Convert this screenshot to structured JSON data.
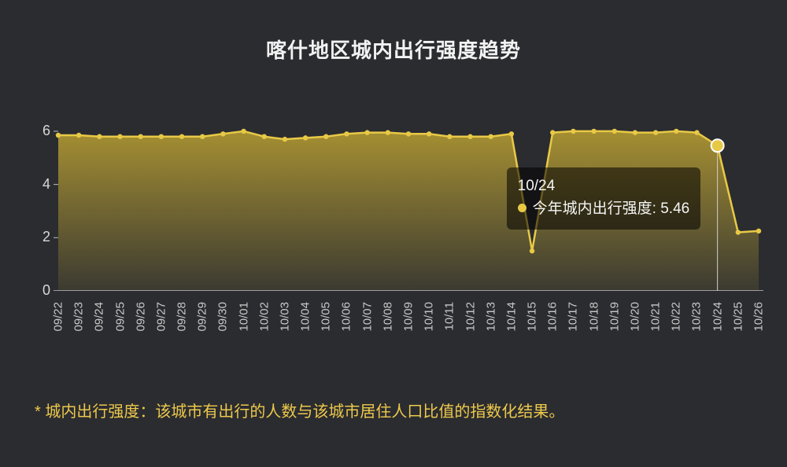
{
  "chart": {
    "type": "area",
    "title": "喀什地区城内出行强度趋势",
    "title_fontsize": 26,
    "title_color": "#f2f2f2",
    "background_color": "#2b2c30",
    "axis_color": "#c0c0c0",
    "label_color": "#c8c8c8",
    "label_fontsize": 15,
    "ytick_fontsize": 18,
    "series_color": "#e8c946",
    "marker_color": "#e8c946",
    "marker_radius": 3.2,
    "line_width": 2.5,
    "gradient_top": "#a58f32",
    "gradient_bottom": "#3b3a31",
    "ylim": [
      0,
      6.5
    ],
    "yticks": [
      0,
      2,
      4,
      6
    ],
    "x_labels": [
      "09/22",
      "09/23",
      "09/24",
      "09/25",
      "09/26",
      "09/27",
      "09/28",
      "09/29",
      "09/30",
      "10/01",
      "10/02",
      "10/03",
      "10/04",
      "10/05",
      "10/06",
      "10/07",
      "10/08",
      "10/09",
      "10/10",
      "10/11",
      "10/12",
      "10/13",
      "10/14",
      "10/15",
      "10/16",
      "10/17",
      "10/18",
      "10/19",
      "10/20",
      "10/21",
      "10/22",
      "10/23",
      "10/24",
      "10/25",
      "10/26"
    ],
    "values": [
      5.85,
      5.85,
      5.8,
      5.8,
      5.8,
      5.8,
      5.8,
      5.8,
      5.9,
      6.0,
      5.8,
      5.7,
      5.75,
      5.8,
      5.9,
      5.95,
      5.95,
      5.9,
      5.9,
      5.8,
      5.8,
      5.8,
      5.9,
      1.5,
      5.95,
      6.0,
      6.0,
      6.0,
      5.95,
      5.95,
      6.0,
      5.95,
      5.46,
      2.2,
      2.25
    ],
    "highlight_index": 32,
    "highlight_dot_radius": 8,
    "tooltip": {
      "date": "10/24",
      "series_name": "今年城内出行强度",
      "value": "5.46",
      "dot_color": "#e8c946",
      "bg_color": "rgba(0,0,0,0.55)",
      "text_color": "#f5f5f5"
    }
  },
  "footnote": {
    "text": "* 城内出行强度：该城市有出行的人数与该城市居住人口比值的指数化结果。",
    "color": "#edc94b",
    "fontsize": 20
  }
}
